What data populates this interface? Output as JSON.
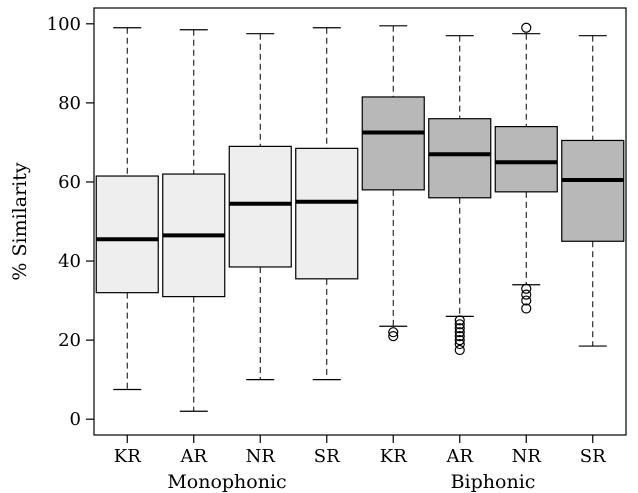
{
  "chart_data": {
    "type": "boxplot",
    "ylabel": "% Similarity",
    "ylim": [
      -4,
      104
    ],
    "yticks": [
      0,
      20,
      40,
      60,
      80,
      100
    ],
    "categories": [
      "KR",
      "AR",
      "NR",
      "SR",
      "KR",
      "AR",
      "NR",
      "SR"
    ],
    "groups": [
      {
        "label": "Monophonic",
        "start": 0,
        "end": 3
      },
      {
        "label": "Biphonic",
        "start": 4,
        "end": 7
      }
    ],
    "colors": {
      "monophonic": "#eeeeee",
      "biphonic": "#b8b8b8"
    },
    "boxes": [
      {
        "category": "KR",
        "group": "Monophonic",
        "whisker_low": 7.5,
        "q1": 32,
        "median": 45.5,
        "q3": 61.5,
        "whisker_high": 99,
        "outliers": []
      },
      {
        "category": "AR",
        "group": "Monophonic",
        "whisker_low": 2,
        "q1": 31,
        "median": 46.5,
        "q3": 62,
        "whisker_high": 98.5,
        "outliers": []
      },
      {
        "category": "NR",
        "group": "Monophonic",
        "whisker_low": 10,
        "q1": 38.5,
        "median": 54.5,
        "q3": 69,
        "whisker_high": 97.5,
        "outliers": []
      },
      {
        "category": "SR",
        "group": "Monophonic",
        "whisker_low": 10,
        "q1": 35.5,
        "median": 55,
        "q3": 68.5,
        "whisker_high": 99,
        "outliers": []
      },
      {
        "category": "KR",
        "group": "Biphonic",
        "whisker_low": 23.5,
        "q1": 58,
        "median": 72.5,
        "q3": 81.5,
        "whisker_high": 99.5,
        "outliers": [
          22,
          21
        ]
      },
      {
        "category": "AR",
        "group": "Biphonic",
        "whisker_low": 26,
        "q1": 56,
        "median": 67,
        "q3": 76,
        "whisker_high": 97,
        "outliers": [
          25,
          24,
          23,
          22,
          21,
          20,
          19,
          17.5
        ]
      },
      {
        "category": "NR",
        "group": "Biphonic",
        "whisker_low": 34,
        "q1": 57.5,
        "median": 65,
        "q3": 74,
        "whisker_high": 97.5,
        "outliers": [
          99,
          33,
          31.5,
          30,
          28
        ]
      },
      {
        "category": "SR",
        "group": "Biphonic",
        "whisker_low": 18.5,
        "q1": 45,
        "median": 60.5,
        "q3": 70.5,
        "whisker_high": 97,
        "outliers": []
      }
    ]
  }
}
